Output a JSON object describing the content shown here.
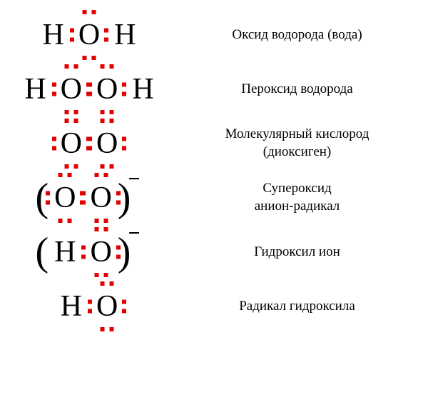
{
  "styling": {
    "background_color": "#ffffff",
    "atom_font_size": 42,
    "atom_color": "#000000",
    "label_font_size": 19,
    "label_color": "#000000",
    "dot_color": "#e30000",
    "dot_size": 6,
    "dot_gap": 7,
    "paren_font_size": 56,
    "charge_font_size": 30,
    "font_family": "Georgia, 'Times New Roman', serif"
  },
  "rows": [
    {
      "label": "Оксид водорода (вода)",
      "formula": {
        "has_parens": false,
        "charge": null,
        "atoms": [
          {
            "symbol": "H",
            "dots": []
          },
          {
            "symbol": "O",
            "dots": [
              "top",
              "left",
              "right",
              "bottom"
            ]
          },
          {
            "symbol": "H",
            "dots": []
          }
        ]
      }
    },
    {
      "label": "Пероксид водорода",
      "formula": {
        "has_parens": false,
        "charge": null,
        "atoms": [
          {
            "symbol": "H",
            "dots": []
          },
          {
            "symbol": "O",
            "dots": [
              "top",
              "left",
              "right",
              "bottom"
            ]
          },
          {
            "symbol": "O",
            "dots": [
              "top",
              "left",
              "right",
              "bottom"
            ]
          },
          {
            "symbol": "H",
            "dots": []
          }
        ]
      }
    },
    {
      "label": "Молекулярный кислород\n(диоксиген)",
      "formula": {
        "has_parens": false,
        "charge": null,
        "atoms": [
          {
            "symbol": "O",
            "dots": [
              "top",
              "left",
              "right",
              "bottom"
            ]
          },
          {
            "symbol": "O",
            "dots": [
              "top",
              "left",
              "right",
              "bottom"
            ]
          }
        ]
      }
    },
    {
      "label": "Супероксид\nанион-радикал",
      "formula": {
        "has_parens": true,
        "charge": "−",
        "atoms": [
          {
            "symbol": "O",
            "dots": [
              "top",
              "left",
              "right",
              "bottom"
            ]
          },
          {
            "symbol": "O",
            "dots": [
              "top",
              "left",
              "right",
              "bottom"
            ]
          }
        ]
      }
    },
    {
      "label": "Гидроксил ион",
      "formula": {
        "has_parens": true,
        "charge": "−",
        "atoms": [
          {
            "symbol": "H",
            "dots": []
          },
          {
            "symbol": "O",
            "dots": [
              "top",
              "left",
              "right",
              "bottom"
            ]
          }
        ]
      }
    },
    {
      "label": "Радикал гидроксила",
      "formula": {
        "has_parens": false,
        "charge": null,
        "atoms": [
          {
            "symbol": "H",
            "dots": []
          },
          {
            "symbol": "O",
            "dots": [
              "top",
              "left",
              "right",
              "bottom"
            ]
          }
        ]
      }
    }
  ]
}
